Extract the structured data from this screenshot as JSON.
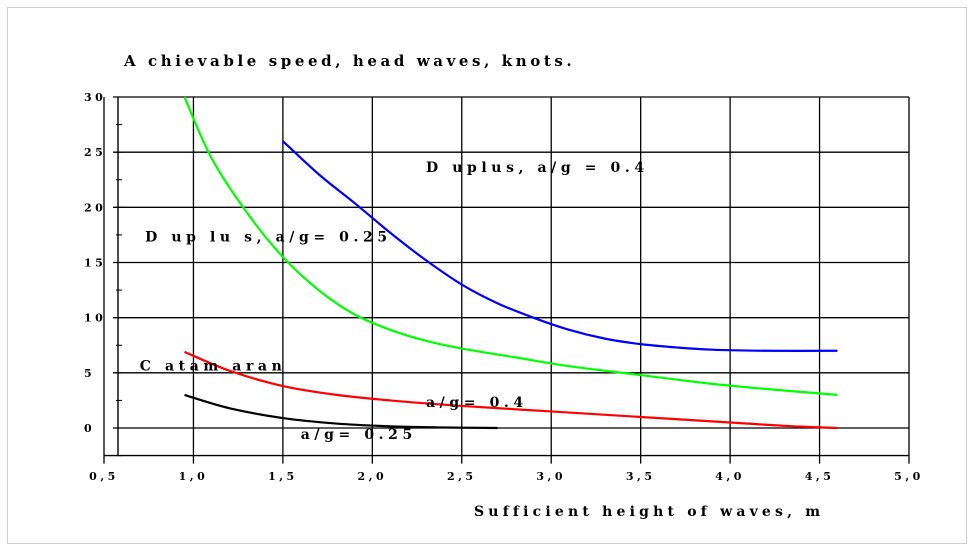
{
  "chart_data": {
    "type": "line",
    "title": "A chievable speed, head waves, knots.",
    "xlabel": "Sufficient height of waves, m",
    "ylabel": "",
    "xlim": [
      0.5,
      5.0
    ],
    "ylim": [
      -2.5,
      30
    ],
    "x_ticks": [
      "0,5",
      "1,0",
      "1,5",
      "2,0",
      "2,5",
      "3,0",
      "3,5",
      "4,0",
      "4,5",
      "5,0"
    ],
    "y_ticks": [
      "0",
      "5",
      "10",
      "15",
      "20",
      "25",
      "30"
    ],
    "grid": true,
    "legend": "none",
    "series": [
      {
        "name": "Duplus, a/g = 0.4",
        "color": "#0000ff",
        "x": [
          1.5,
          1.7,
          1.9,
          2.1,
          2.3,
          2.5,
          2.7,
          2.9,
          3.1,
          3.3,
          3.5,
          3.7,
          3.9,
          4.2,
          4.6
        ],
        "y": [
          26,
          23,
          20.4,
          17.7,
          15.2,
          13,
          11.3,
          10,
          8.9,
          8.1,
          7.6,
          7.3,
          7.1,
          7.0,
          7.0
        ]
      },
      {
        "name": "Duplus, a/g=0.25",
        "color": "#00ff00",
        "x": [
          0.95,
          1.1,
          1.3,
          1.5,
          1.7,
          1.9,
          2.1,
          2.3,
          2.5,
          2.8,
          3.1,
          3.5,
          3.9,
          4.3,
          4.6
        ],
        "y": [
          30,
          24.5,
          19.5,
          15.5,
          12.5,
          10.3,
          8.9,
          7.9,
          7.2,
          6.4,
          5.6,
          4.8,
          4.0,
          3.4,
          3.0
        ]
      },
      {
        "name": "a/g=0.4",
        "color": "#ff0000",
        "x": [
          0.95,
          1.2,
          1.5,
          1.8,
          2.1,
          2.5,
          3.0,
          3.5,
          4.0,
          4.3,
          4.6
        ],
        "y": [
          6.9,
          5.2,
          3.8,
          3.0,
          2.5,
          2.0,
          1.5,
          1.0,
          0.5,
          0.2,
          0.0
        ]
      },
      {
        "name": "a/g=0.25",
        "color": "#000000",
        "x": [
          0.95,
          1.2,
          1.5,
          1.8,
          2.1,
          2.4,
          2.7
        ],
        "y": [
          3.0,
          1.8,
          0.9,
          0.4,
          0.15,
          0.05,
          0.0
        ]
      }
    ],
    "annotations": [
      {
        "text": "D uplus, a/g =  0.4",
        "x": 2.3,
        "y": 23.2
      },
      {
        "text": "D up lu s, a/g= 0.25",
        "x": 0.73,
        "y": 16.9
      },
      {
        "text": "C atam aran",
        "x": 0.7,
        "y": 5.2
      },
      {
        "text": "a/g= 0.4",
        "x": 2.3,
        "y": 1.9
      },
      {
        "text": "a/g= 0.25",
        "x": 1.6,
        "y": -1.0
      }
    ]
  }
}
